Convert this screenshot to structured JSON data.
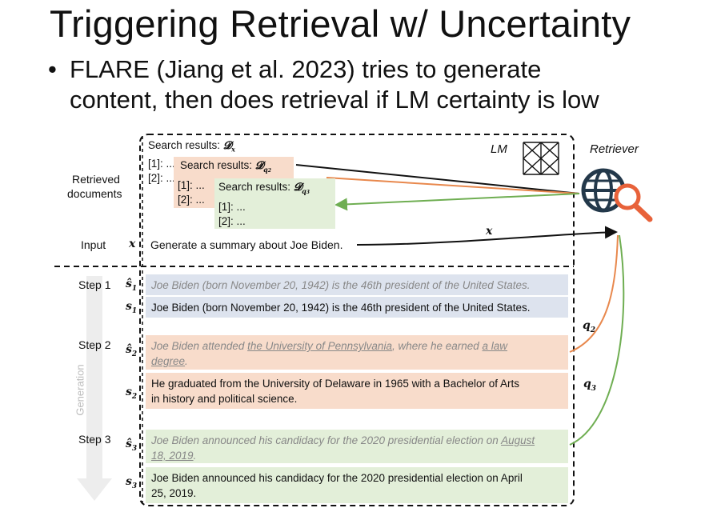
{
  "title": "Triggering Retrieval w/ Uncertainty",
  "bullet": {
    "marker": "•",
    "line1": "FLARE (Jiang et al. 2023) tries to generate",
    "line2": "content, then does retrieval if LM certainty is low"
  },
  "labels": {
    "retrieved_1": "Retrieved",
    "retrieved_2": "documents",
    "input": "Input",
    "step1": "Step 1",
    "step2": "Step 2",
    "step3": "Step 3",
    "generation": "Generation",
    "lm": "LM",
    "retriever": "Retriever"
  },
  "symbols": {
    "x": "x",
    "s_hat": "ŝ",
    "s": "s",
    "sub1": "1",
    "sub2": "2",
    "sub3": "3",
    "q": "q"
  },
  "search": {
    "header": "Search results:",
    "d": "𝓓",
    "dx_sub": "x",
    "dq_sub": "q",
    "item1": "[1]: ...",
    "item2": "[2]: ...",
    "item1_short": "[1]: ...",
    "item2_short": "[2]: ..."
  },
  "input_text": "Generate a summary about Joe Biden.",
  "steps": {
    "s1_hat": "Joe Biden (born November 20, 1942) is the 46th president of the United States.",
    "s1": "Joe Biden (born November 20, 1942) is the 46th president of the United States.",
    "s2_hat_a": "Joe Biden attended ",
    "s2_hat_b": "the University of Pennsylvania",
    "s2_hat_c": ", where he earned ",
    "s2_hat_d": "a law",
    "s2_hat_e": "degree",
    "s2_hat_f": ".",
    "s2_line1": "He graduated from the University of Delaware in 1965 with a Bachelor of Arts",
    "s2_line2": "in history and political science.",
    "s3_hat_a": "Joe Biden announced his candidacy for the 2020 presidential election on ",
    "s3_hat_b": "August",
    "s3_hat_c": "18, 2019",
    "s3_hat_d": ".",
    "s3_line1": "Joe Biden announced his candidacy for the 2020 presidential election on April",
    "s3_line2": "25, 2019."
  },
  "colors": {
    "blue_box": "#dde3ee",
    "orange_box": "#f8dccb",
    "green_box": "#e3efd9",
    "orange_arrow": "#e8884d",
    "green_arrow": "#6fae52",
    "retriever_icon": "#23384a",
    "magnifier": "#e8623a"
  }
}
